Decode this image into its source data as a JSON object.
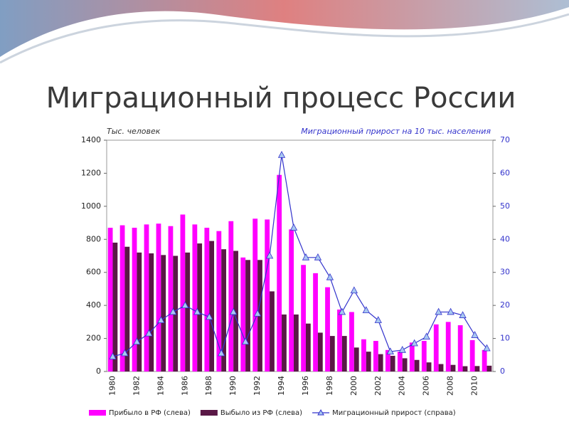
{
  "title": "Миграционный процесс России",
  "chart_data": {
    "type": "bar",
    "ylabel": "Тыс. человек",
    "y2label": "Миграционный прирост на 10 тыс. населения",
    "categories": [
      "1980",
      null,
      "1982",
      null,
      "1984",
      null,
      "1986",
      null,
      "1988",
      null,
      "1990",
      null,
      "1992",
      null,
      "1994",
      null,
      "1996",
      null,
      "1998",
      null,
      "2000",
      null,
      "2002",
      null,
      "2004",
      null,
      "2006",
      null,
      "2008",
      null,
      "2010",
      null
    ],
    "series": [
      {
        "name": "Прибыло в РФ (слева)",
        "type": "bar",
        "color": "#ff00ff",
        "values": [
          870,
          885,
          870,
          890,
          895,
          880,
          950,
          890,
          870,
          850,
          910,
          690,
          925,
          920,
          1190,
          860,
          645,
          595,
          510,
          375,
          360,
          195,
          185,
          130,
          120,
          175,
          185,
          285,
          300,
          280,
          190,
          130
        ]
      },
      {
        "name": "Выбыло из РФ (слева)",
        "type": "bar",
        "color": "#5a1846",
        "values": [
          780,
          755,
          720,
          715,
          705,
          700,
          720,
          775,
          790,
          740,
          730,
          675,
          675,
          485,
          345,
          345,
          290,
          235,
          215,
          215,
          145,
          120,
          105,
          95,
          80,
          70,
          55,
          45,
          40,
          32,
          33,
          35
        ]
      },
      {
        "name": "Миграционный прирост (справа)",
        "type": "line",
        "axis": "y2",
        "color": "#3333cc",
        "values": [
          4.5,
          5.5,
          9,
          11.5,
          15.5,
          18,
          20,
          18,
          16.5,
          5.5,
          18,
          9,
          17.5,
          35,
          65.5,
          43.5,
          34.5,
          34.5,
          28.5,
          18,
          24.5,
          18.5,
          15.5,
          6,
          6.5,
          8.5,
          10.5,
          18,
          18,
          17,
          11,
          7
        ]
      }
    ],
    "ylim": [
      0,
      1400
    ],
    "yticks": [
      0,
      200,
      400,
      600,
      800,
      1000,
      1200,
      1400
    ],
    "y2lim": [
      0,
      70
    ],
    "y2ticks": [
      0,
      10,
      20,
      30,
      40,
      50,
      60,
      70
    ]
  }
}
